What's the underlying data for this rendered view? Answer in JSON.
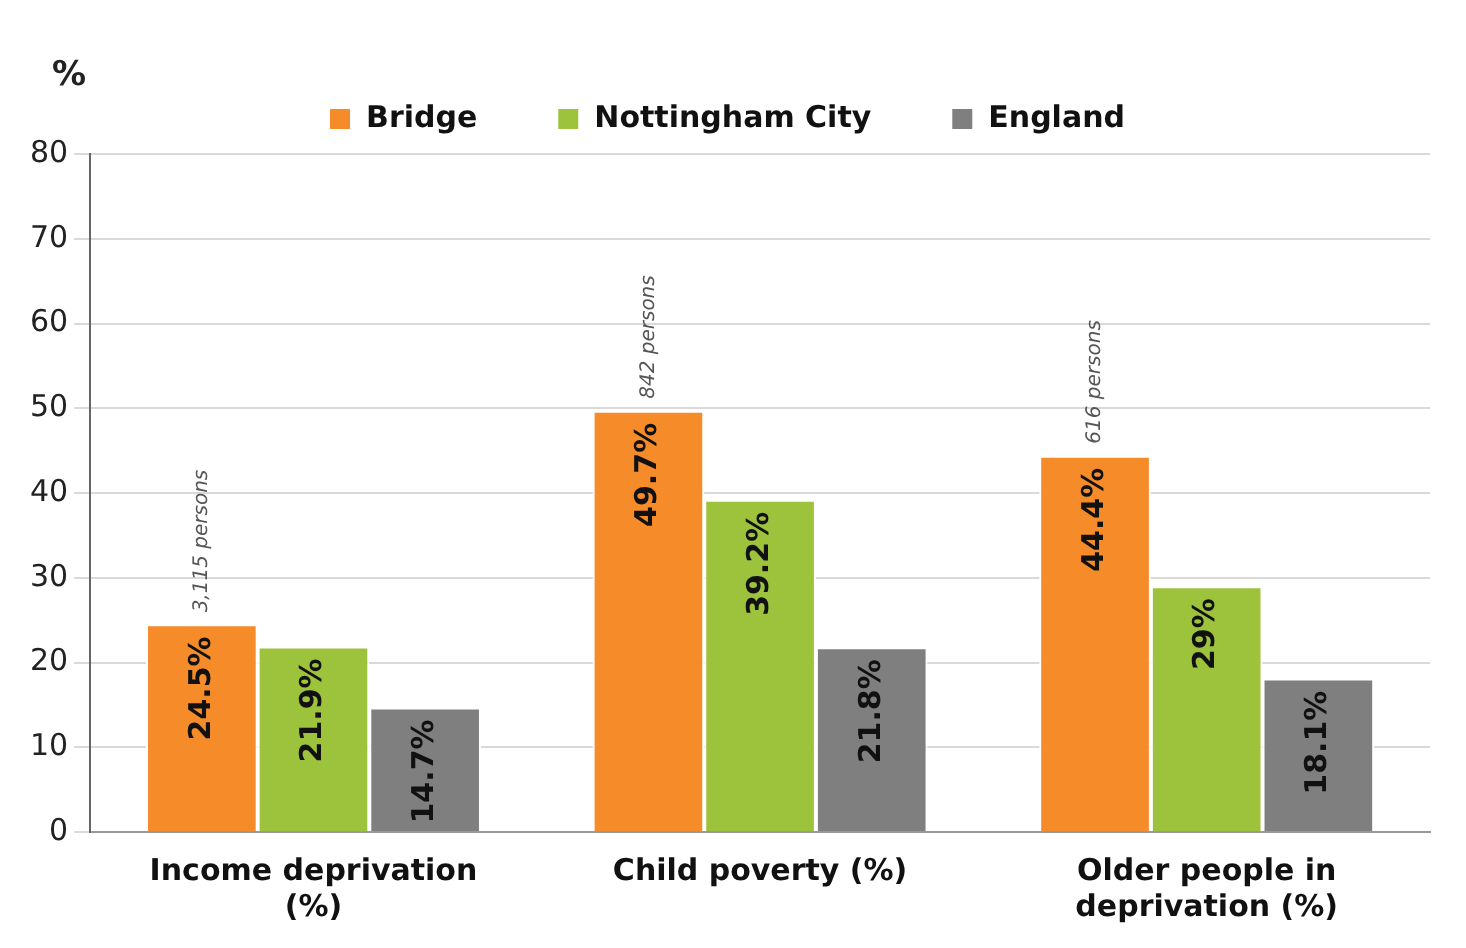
{
  "chart_data": {
    "type": "bar",
    "ylabel": "%",
    "categories": [
      "Income deprivation (%)",
      "Child poverty (%)",
      "Older people in deprivation (%)"
    ],
    "series": [
      {
        "name": "Bridge",
        "color": "#f68b2a",
        "values": [
          24.5,
          49.7,
          44.4
        ],
        "value_labels": [
          "24.5%",
          "49.7%",
          "44.4%"
        ]
      },
      {
        "name": "Nottingham City",
        "color": "#9dc23c",
        "values": [
          21.9,
          39.2,
          29
        ],
        "value_labels": [
          "21.9%",
          "39.2%",
          "29%"
        ]
      },
      {
        "name": "England",
        "color": "#7f7f7f",
        "values": [
          14.7,
          21.8,
          18.1
        ],
        "value_labels": [
          "14.7%",
          "21.8%",
          "18.1%"
        ]
      }
    ],
    "ylim": [
      0,
      80
    ],
    "yticks": [
      0,
      10,
      20,
      30,
      40,
      50,
      60,
      70,
      80
    ],
    "grid": "y",
    "legend": "top",
    "annotations": [
      "3,115 persons",
      "842 persons",
      "616 persons"
    ]
  }
}
